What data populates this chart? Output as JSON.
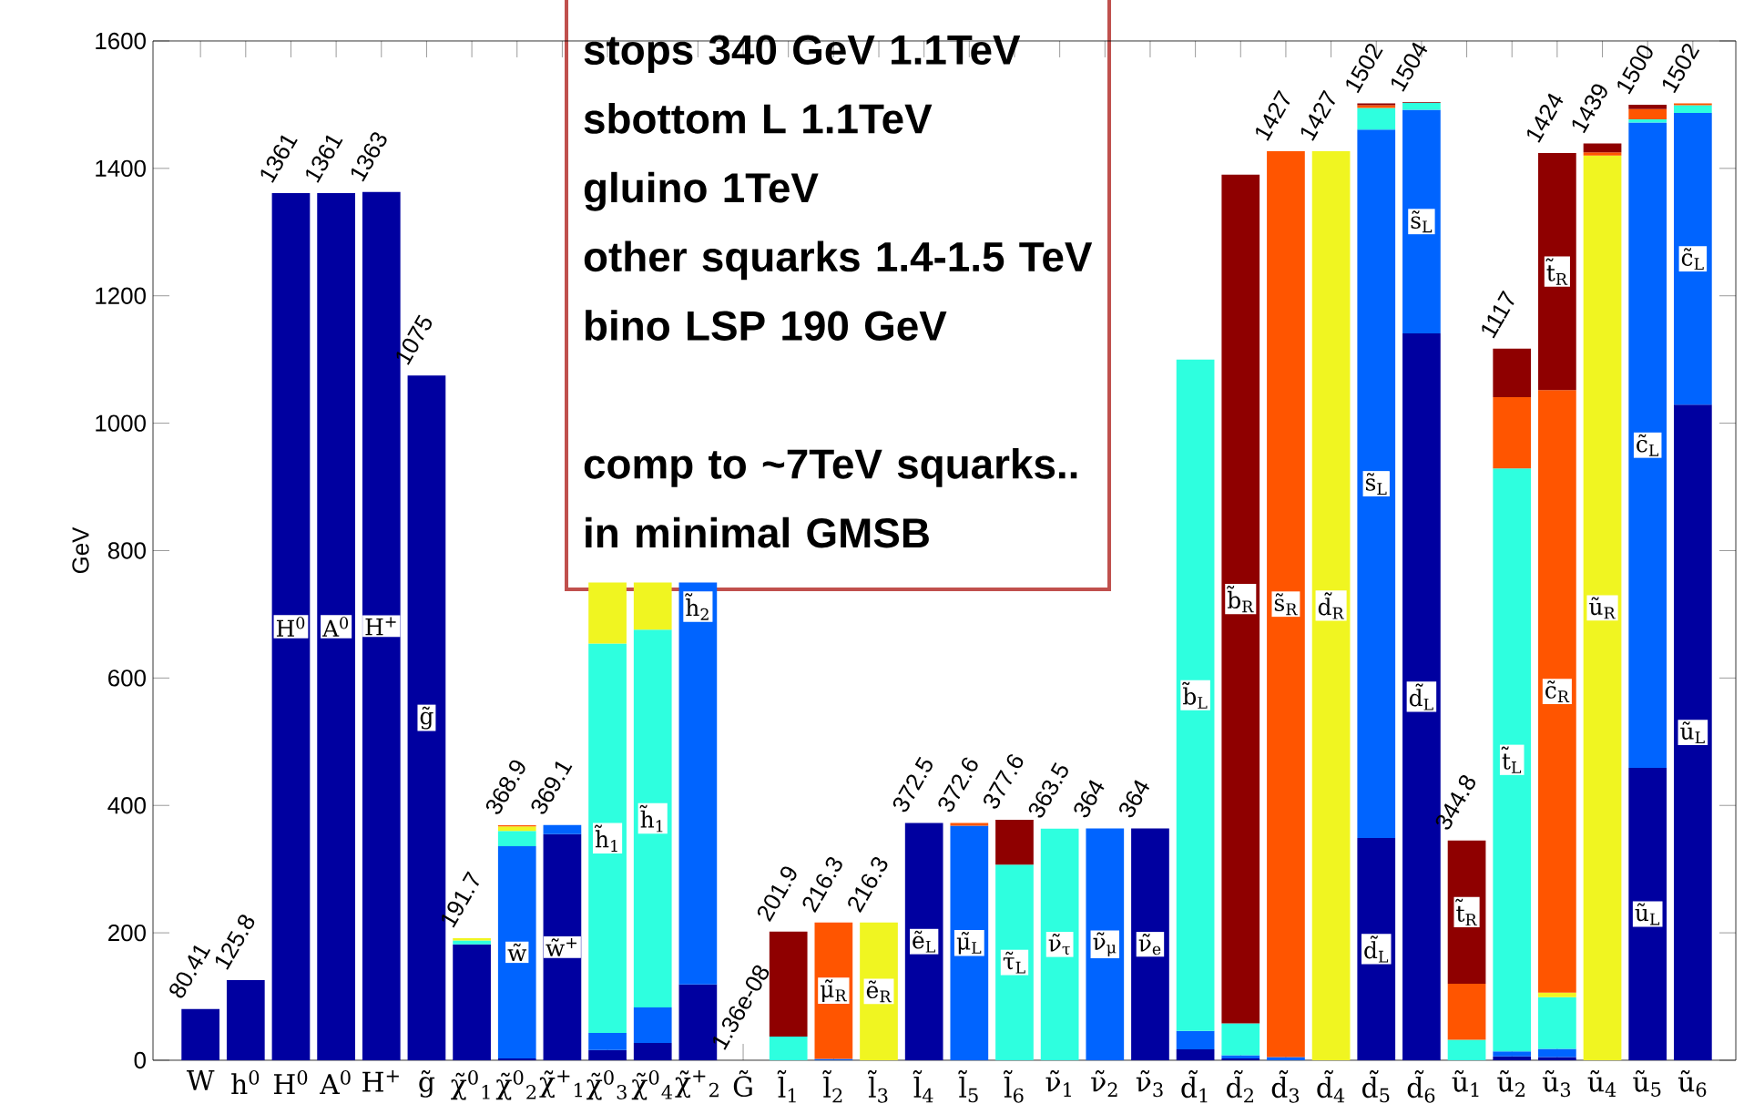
{
  "chart_data": {
    "type": "bar",
    "stacked": true,
    "ylabel": "GeV",
    "categories": [
      "W",
      "h$^{0}$",
      "H$^{0}$",
      "A$^{0}$",
      "H$^{+}$",
      "g̃",
      "χ̃$^{0}$$_{1}$",
      "χ̃$^{0}$$_{2}$",
      "χ̃$^{+}$$_{1}$",
      "χ̃$^{0}$$_{3}$",
      "χ̃$^{0}$$_{4}$",
      "χ̃$^{+}$$_{2}$",
      "G̃",
      "l̃$_{1}$",
      "l̃$_{2}$",
      "l̃$_{3}$",
      "l̃$_{4}$",
      "l̃$_{5}$",
      "l̃$_{6}$",
      "ν̃$_{1}$",
      "ν̃$_{2}$",
      "ν̃$_{3}$",
      "d̃$_{1}$",
      "d̃$_{2}$",
      "d̃$_{3}$",
      "d̃$_{4}$",
      "d̃$_{5}$",
      "d̃$_{6}$",
      "ũ$_{1}$",
      "ũ$_{2}$",
      "ũ$_{3}$",
      "ũ$_{4}$",
      "ũ$_{5}$",
      "ũ$_{6}$"
    ],
    "series": [
      {
        "color": "#0000a0",
        "values": [
          80.41,
          125.8,
          1361,
          1361,
          1363,
          1075,
          182,
          3,
          355,
          16,
          27,
          119,
          1.36e-08,
          null,
          null,
          null,
          372.5,
          null,
          null,
          null,
          null,
          364,
          17,
          3,
          null,
          null,
          349,
          1141,
          null,
          6,
          5,
          null,
          459,
          1029
        ]
      },
      {
        "color": "#0064ff",
        "values": [
          null,
          null,
          null,
          null,
          null,
          null,
          null,
          333,
          14.1,
          27,
          56,
          631,
          null,
          null,
          2,
          null,
          null,
          368,
          null,
          null,
          364,
          null,
          29,
          5,
          5,
          null,
          1112,
          351,
          null,
          8,
          13,
          null,
          1013,
          458
        ]
      },
      {
        "color": "#2effdf",
        "values": [
          null,
          null,
          null,
          null,
          null,
          null,
          6,
          24,
          null,
          611,
          593,
          null,
          null,
          37,
          null,
          null,
          null,
          null,
          307,
          363.5,
          null,
          null,
          1054,
          50,
          null,
          null,
          34,
          11,
          32,
          915,
          81,
          null,
          5,
          12
        ]
      },
      {
        "color": "#f0f521",
        "values": [
          null,
          null,
          null,
          null,
          null,
          null,
          3.7,
          7,
          null,
          96,
          74,
          null,
          null,
          null,
          null,
          216.3,
          null,
          null,
          null,
          null,
          null,
          null,
          null,
          null,
          null,
          1427,
          null,
          null,
          null,
          null,
          7,
          1420,
          null,
          null
        ]
      },
      {
        "color": "#ff5500",
        "values": [
          null,
          null,
          null,
          null,
          null,
          null,
          null,
          1.9,
          null,
          null,
          null,
          null,
          null,
          null,
          214.3,
          null,
          null,
          4.6,
          null,
          null,
          null,
          null,
          null,
          null,
          1422,
          null,
          4,
          null,
          88,
          112,
          946,
          5,
          16,
          3
        ]
      },
      {
        "color": "#8f0000",
        "values": [
          null,
          null,
          null,
          null,
          null,
          null,
          null,
          null,
          null,
          null,
          null,
          null,
          null,
          164.9,
          null,
          null,
          null,
          null,
          70.6,
          null,
          null,
          null,
          null,
          1332,
          null,
          null,
          3,
          1,
          224.8,
          76,
          372,
          14,
          7,
          null
        ]
      }
    ],
    "totals": [
      "80.41",
      "125.8",
      "1361",
      "1361",
      "1363",
      "1075",
      "191.7",
      "368.9",
      "369.1",
      null,
      null,
      null,
      "1.36e-08",
      "201.9",
      "216.3",
      "216.3",
      "372.5",
      "372.6",
      "377.6",
      "363.5",
      "364",
      "364",
      null,
      null,
      "1427",
      "1427",
      "1502",
      "1504",
      "344.8",
      "1117",
      "1424",
      "1439",
      "1500",
      "1502"
    ],
    "ylim": [
      0,
      1600
    ],
    "yticks": [
      0,
      200,
      400,
      600,
      800,
      1000,
      1200,
      1400,
      1600
    ],
    "annotations": [
      "stops 340 GeV 1.1TeV",
      "sbottom L 1.1TeV",
      "gluino 1TeV",
      "other squarks 1.4-1.5 TeV",
      "bino LSP 190 GeV",
      "comp to ~7TeV squarks..",
      "in minimal GMSB",
      {
        "text": "H$^{0}$",
        "x": "H$^{0}$",
        "y": 680.5
      },
      {
        "text": "A$^{0}$",
        "x": "A$^{0}$",
        "y": 680.5
      },
      {
        "text": "H$^{+}$",
        "x": "H$^{+}$",
        "y": 681.5
      },
      {
        "text": "g̃",
        "x": "g̃",
        "y": 537.5
      },
      {
        "text": "w̃",
        "x": "χ̃$^{0}$$_{2}$",
        "y": 169.5
      },
      {
        "text": "w̃$^{+}$",
        "x": "χ̃$^{+}$$_{1}$",
        "y": 177.5
      },
      {
        "text": "h̃$_{1}$",
        "x": "χ̃$^{0}$$_{3}$",
        "y": 348.5
      },
      {
        "text": "h̃$_{1}$",
        "x": "χ̃$^{0}$$_{4}$",
        "y": 379.5
      },
      {
        "text": "h̃$_{2}$",
        "x": "χ̃$^{+}$$_{2}$",
        "y": 712
      },
      {
        "text": "μ̃$_{R}$",
        "x": "l̃$_{2}$",
        "y": 109.2
      },
      {
        "text": "ẽ$_{R}$",
        "x": "l̃$_{3}$",
        "y": 108.2
      },
      {
        "text": "ẽ$_{L}$",
        "x": "l̃$_{4}$",
        "y": 186.3
      },
      {
        "text": "μ̃$_{L}$",
        "x": "l̃$_{5}$",
        "y": 184
      },
      {
        "text": "τ̃$_{L}$",
        "x": "l̃$_{6}$",
        "y": 153.5
      },
      {
        "text": "ν̃$_{τ}$",
        "x": "ν̃$_{1}$",
        "y": 181.8
      },
      {
        "text": "ν̃$_{μ}$",
        "x": "ν̃$_{2}$",
        "y": 182
      },
      {
        "text": "ν̃$_{e}$",
        "x": "ν̃$_{3}$",
        "y": 182
      },
      {
        "text": "b̃$_{L}$",
        "x": "d̃$_{1}$",
        "y": 573
      },
      {
        "text": "b̃$_{R}$",
        "x": "d̃$_{2}$",
        "y": 724
      },
      {
        "text": "s̃$_{R}$",
        "x": "d̃$_{3}$",
        "y": 716
      },
      {
        "text": "d̃$_{R}$",
        "x": "d̃$_{4}$",
        "y": 713.5
      },
      {
        "text": "d̃$_{L}$",
        "x": "d̃$_{5}$",
        "y": 174.5
      },
      {
        "text": "s̃$_{L}$",
        "x": "d̃$_{5}$",
        "y": 905
      },
      {
        "text": "d̃$_{L}$",
        "x": "d̃$_{6}$",
        "y": 570.5
      },
      {
        "text": "s̃$_{L}$",
        "x": "d̃$_{6}$",
        "y": 1316.5
      },
      {
        "text": "t̃$_{R}$",
        "x": "ũ$_{1}$",
        "y": 232.4
      },
      {
        "text": "t̃$_{L}$",
        "x": "ũ$_{2}$",
        "y": 471.5
      },
      {
        "text": "c̃$_{R}$",
        "x": "ũ$_{3}$",
        "y": 579
      },
      {
        "text": "t̃$_{R}$",
        "x": "ũ$_{3}$",
        "y": 1238
      },
      {
        "text": "ũ$_{R}$",
        "x": "ũ$_{4}$",
        "y": 710
      },
      {
        "text": "ũ$_{L}$",
        "x": "ũ$_{5}$",
        "y": 229.5
      },
      {
        "text": "c̃$_{L}$",
        "x": "ũ$_{5}$",
        "y": 965.5
      },
      {
        "text": "ũ$_{L}$",
        "x": "ũ$_{6}$",
        "y": 514.5
      },
      {
        "text": "c̃$_{L}$",
        "x": "ũ$_{6}$",
        "y": 1258
      }
    ]
  }
}
